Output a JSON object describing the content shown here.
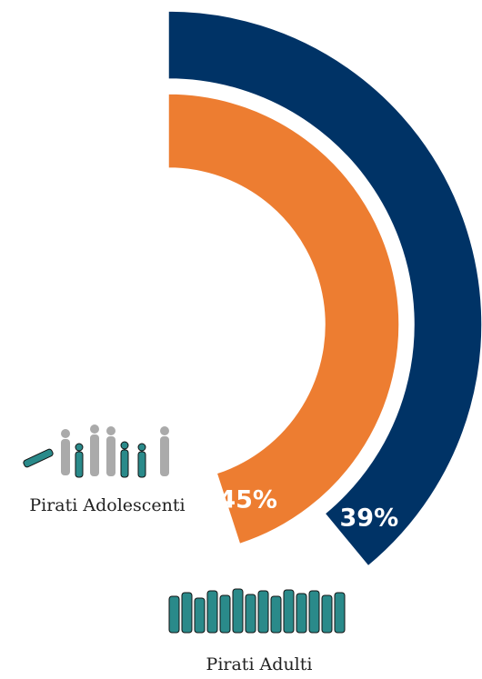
{
  "chart_data": {
    "type": "radial_bar",
    "categories": [
      "Pirati Adolescenti",
      "Pirati Adulti"
    ],
    "values": [
      45,
      39
    ],
    "value_labels": [
      "45%",
      "39%"
    ],
    "colors": [
      "#ed7d31",
      "#003366"
    ],
    "ylim": [
      0,
      100
    ]
  }
}
